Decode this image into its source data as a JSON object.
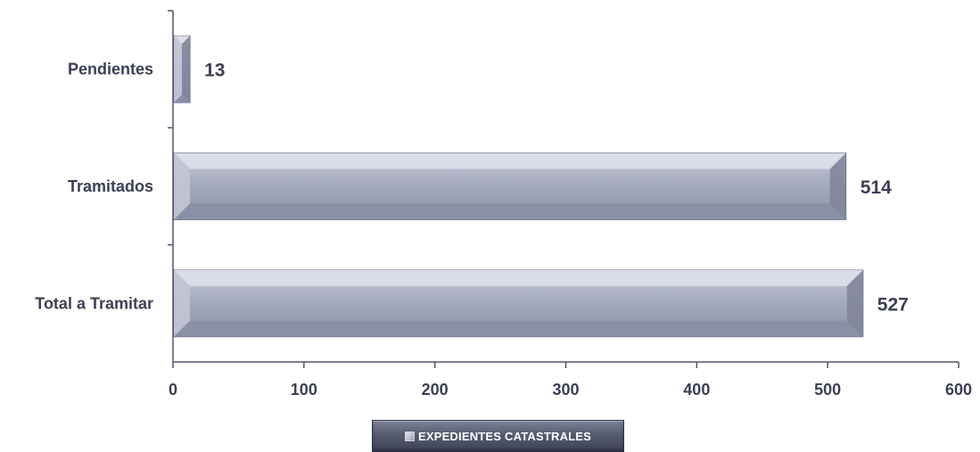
{
  "chart_data": {
    "type": "bar",
    "orientation": "horizontal",
    "categories": [
      "Pendientes",
      "Tramitados",
      "Total a Tramitar"
    ],
    "series": [
      {
        "name": "EXPEDIENTES CATASTRALES",
        "values": [
          13,
          514,
          527
        ]
      }
    ],
    "data_labels": [
      "13",
      "514",
      "527"
    ],
    "xlim": [
      0,
      600
    ],
    "x_ticks": [
      0,
      100,
      200,
      300,
      400,
      500,
      600
    ],
    "grid": false,
    "legend_position": "bottom",
    "colors": {
      "bar_fill": "#a9aec2",
      "bar_edge": "#6c7186",
      "text": "#3c3f55",
      "legend_bg": "#4b5066"
    }
  },
  "legend": {
    "label": "EXPEDIENTES CATASTRALES"
  }
}
